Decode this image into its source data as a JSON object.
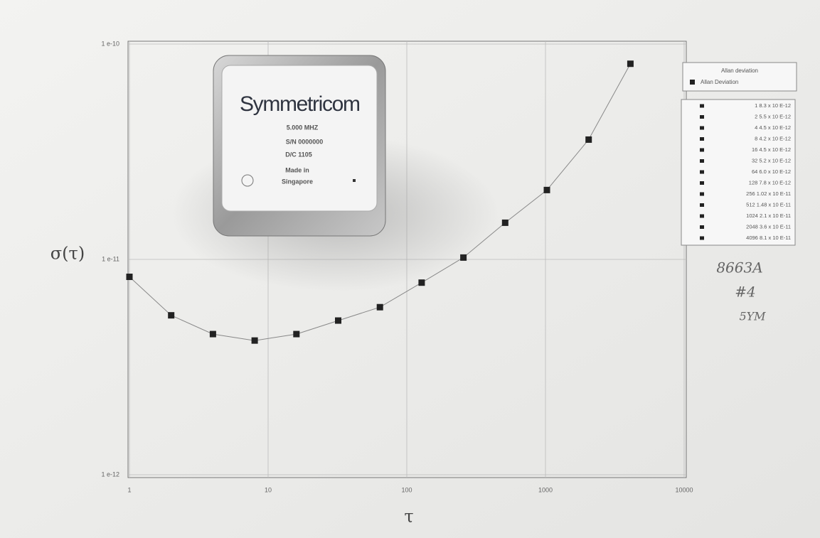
{
  "chart_data": {
    "type": "line",
    "x_label": "τ",
    "y_label": "σ(τ)",
    "x": [
      1,
      2,
      4,
      8,
      16,
      32,
      64,
      128,
      256,
      512,
      1024,
      2048,
      4096
    ],
    "series": [
      {
        "name": "Allan Deviation",
        "color": "#222222",
        "values": [
          8.3e-12,
          5.5e-12,
          4.5e-12,
          4.2e-12,
          4.5e-12,
          5.2e-12,
          6e-12,
          7.8e-12,
          1.02e-11,
          1.48e-11,
          2.1e-11,
          3.6e-11,
          8.1e-11
        ],
        "value_labels": [
          "1 8.3 x 10 E-12",
          "2 5.5 x 10 E-12",
          "4 4.5 x 10 E-12",
          "8 4.2 x 10 E-12",
          "16 4.5 x 10 E-12",
          "32 5.2 x 10 E-12",
          "64 6.0 x 10 E-12",
          "128 7.8 x 10 E-12",
          "256 1.02 x 10 E-11",
          "512 1.48 x 10 E-11",
          "1024 2.1 x 10 E-11",
          "2048 3.6 x 10 E-11",
          "4096 8.1 x 10 E-11"
        ]
      }
    ],
    "legend_title": "Allan deviation",
    "xscale": "log",
    "yscale": "log",
    "xlim": [
      1,
      10000
    ],
    "xticks": [
      1,
      10,
      100,
      1000,
      10000
    ],
    "ylim": [
      1e-12,
      1e-10
    ],
    "yticks": [
      {
        "value": 1e-12,
        "label": "1 e-12"
      },
      {
        "value": 1e-11,
        "label": "1 e-11"
      },
      {
        "value": 1e-10,
        "label": "1 e-10"
      }
    ],
    "grid": true,
    "legend": "right"
  },
  "device": {
    "brand": "Symmetricom",
    "lines": [
      "5.000 MHZ",
      "S/N 0000000",
      "D/C 1105",
      "Made in",
      "Singapore"
    ]
  },
  "notes": [
    "8663A",
    "#4",
    "5YM"
  ]
}
